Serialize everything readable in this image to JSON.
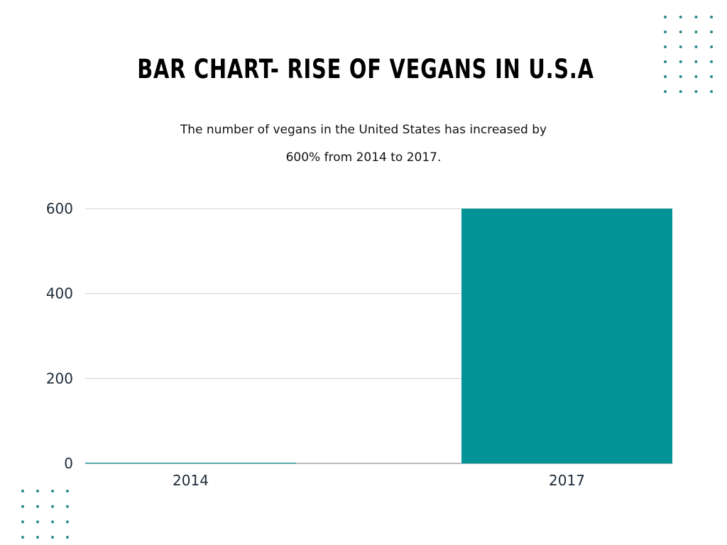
{
  "chart_data": {
    "type": "bar",
    "title": "BAR CHART- RISE OF VEGANS IN U.S.A",
    "subtitle": [
      "The number of vegans in the United States has increased by",
      "600% from 2014 to 2017."
    ],
    "categories": [
      "2014",
      "2017"
    ],
    "values": [
      0,
      600
    ],
    "xlabel": "",
    "ylabel": "",
    "ylim": [
      0,
      600
    ],
    "yticks": [
      0,
      200,
      400,
      600
    ],
    "grid": true,
    "bar_color": "#009499",
    "decoration_color": "#2a8a8c"
  }
}
